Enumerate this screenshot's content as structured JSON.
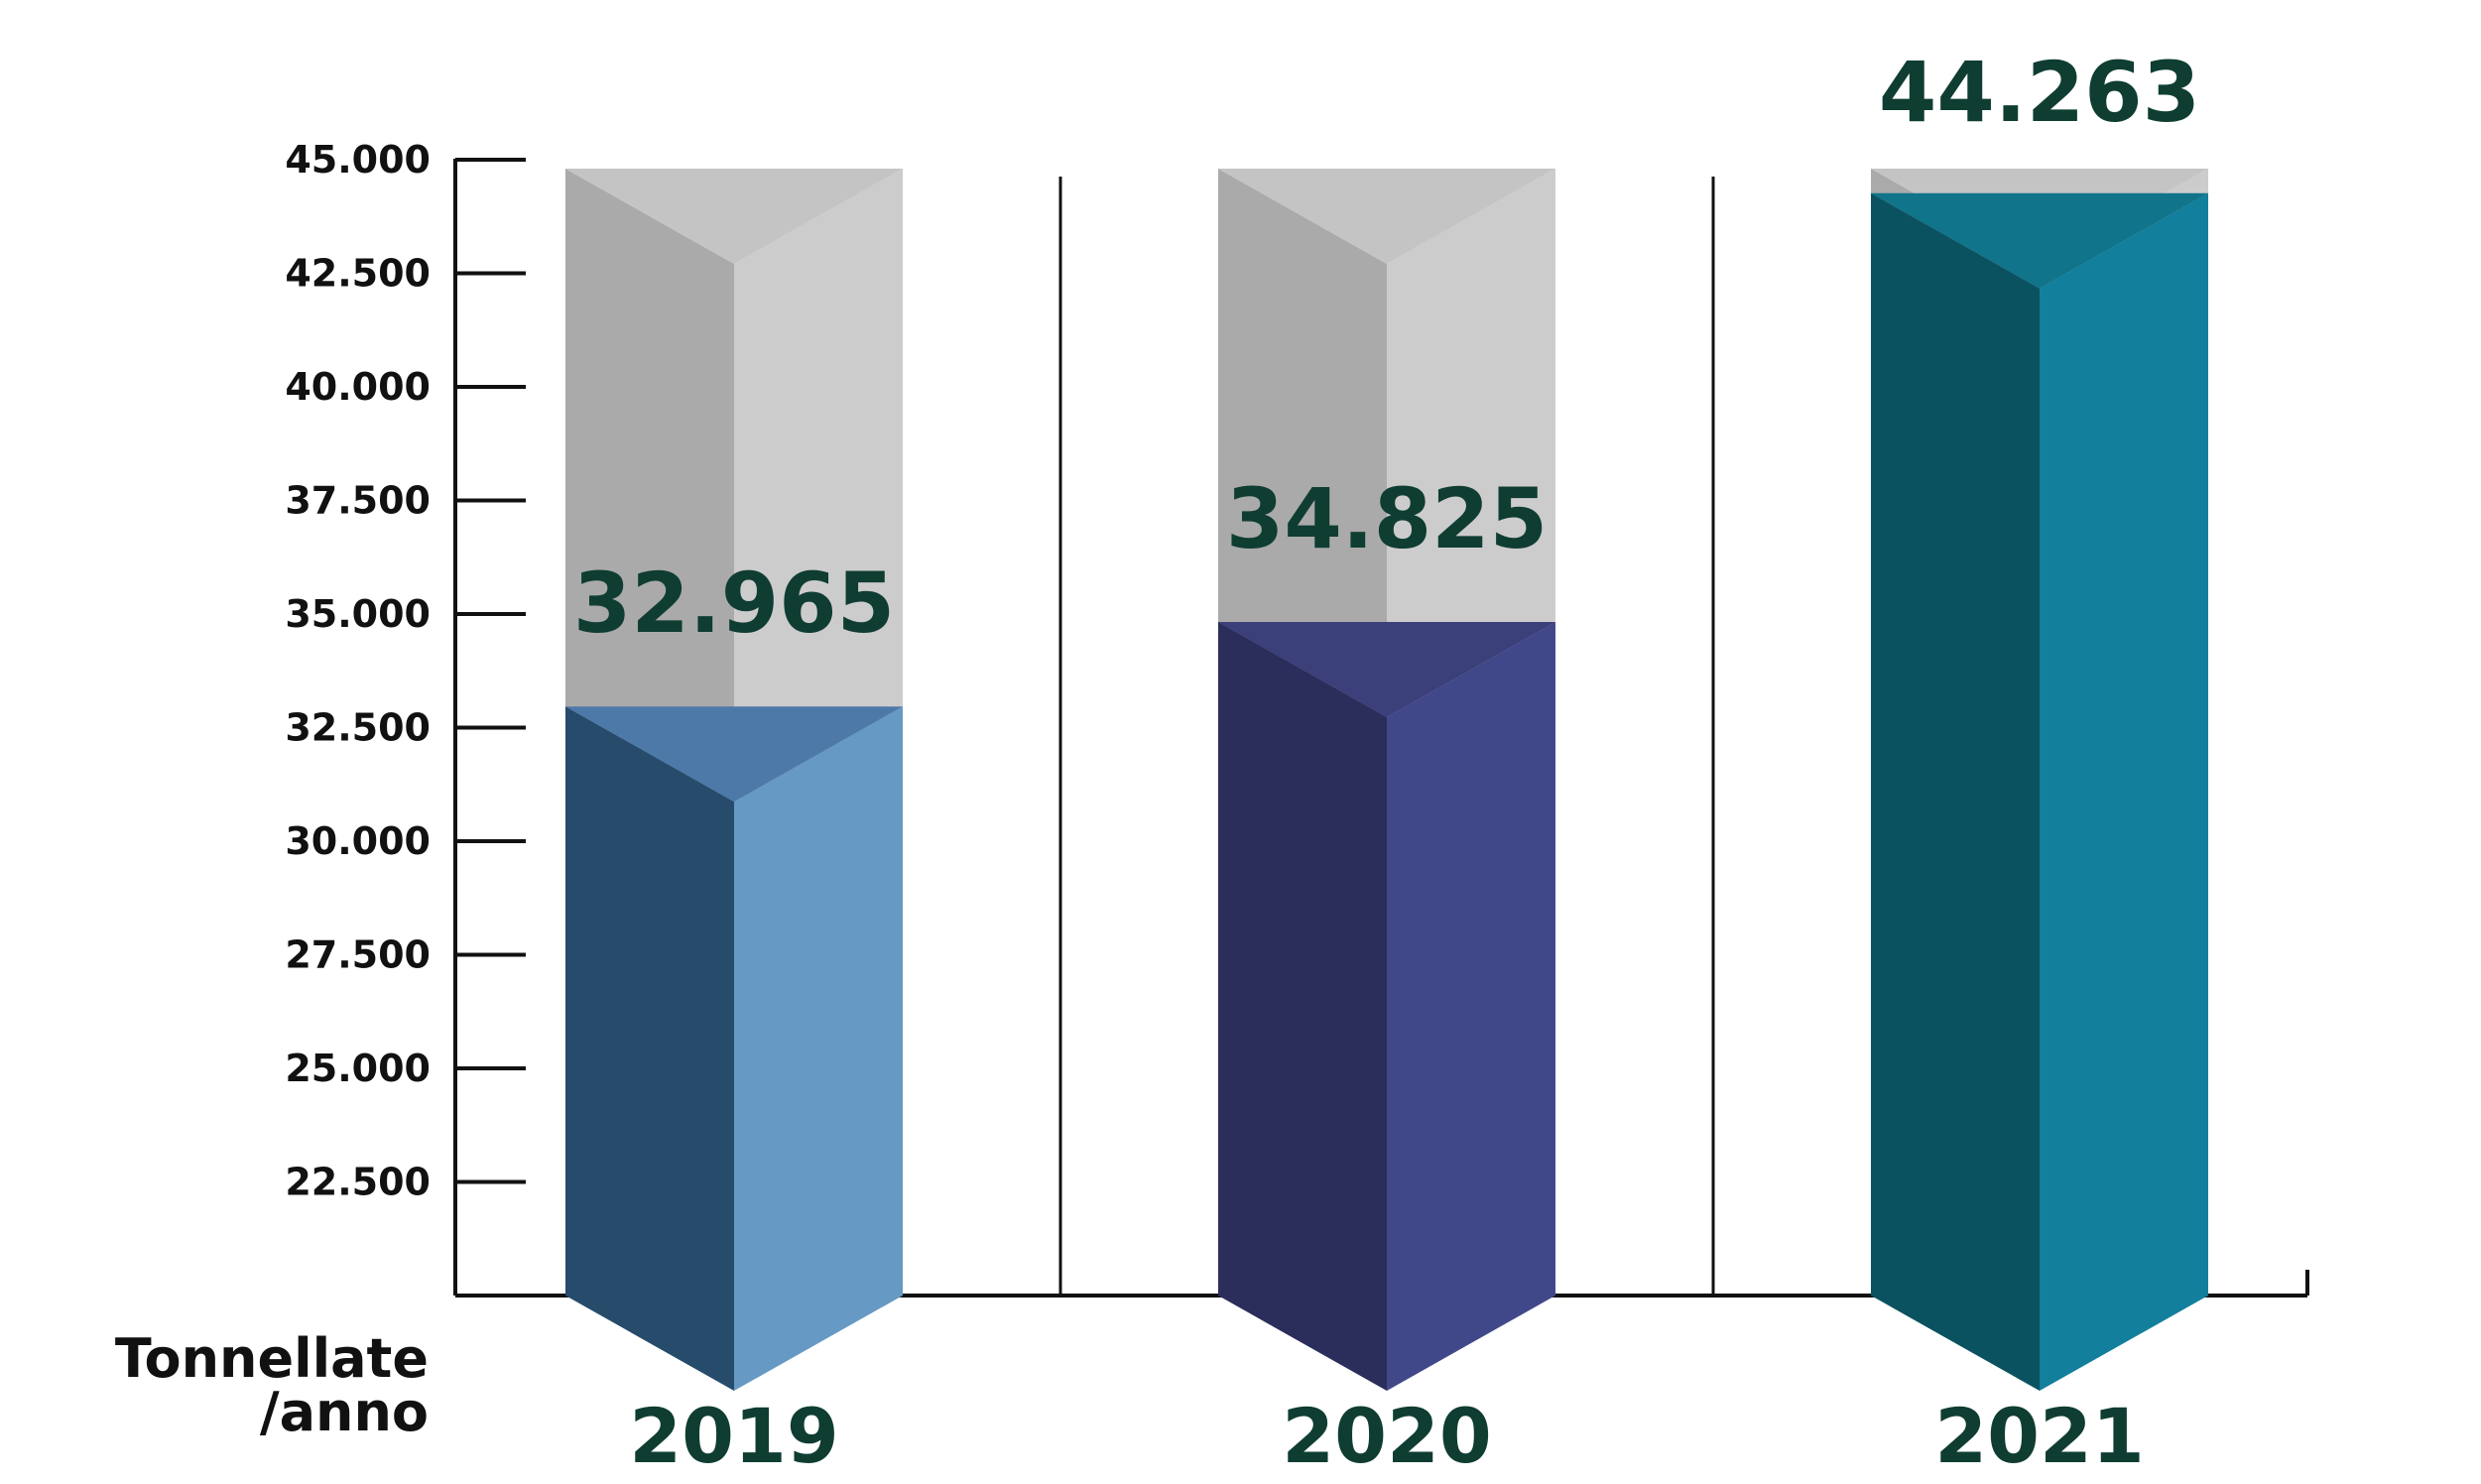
{
  "chart_data": {
    "type": "bar",
    "categories": [
      "2019",
      "2020",
      "2021"
    ],
    "values": [
      32965,
      34825,
      44263
    ],
    "value_labels": [
      "32.965",
      "34.825",
      "44.263"
    ],
    "ylabel_lines": [
      "Tonnellate",
      "/anno"
    ],
    "yticks": [
      22500,
      25000,
      27500,
      30000,
      32500,
      35000,
      37500,
      40000,
      42500,
      45000
    ],
    "ytick_labels": [
      "22.500",
      "25.000",
      "27.500",
      "30.000",
      "32.500",
      "35.000",
      "37.500",
      "40.000",
      "42.500",
      "45.000"
    ],
    "ylim": [
      20000,
      45000
    ],
    "grid": false,
    "legend": "none",
    "colors": {
      "2019": {
        "dark": "#264b6b",
        "light": "#6699c4",
        "top": "#4d79a8"
      },
      "2020": {
        "dark": "#2b2d5a",
        "light": "#41488a",
        "top": "#3b3f7a"
      },
      "2021": {
        "dark": "#0b5260",
        "light": "#127f9c",
        "top": "#10748a"
      },
      "empty": {
        "dark": "#aaaaaa",
        "light": "#cdcccd",
        "top": "#c5c4c5"
      },
      "label": "#0f3d32"
    }
  }
}
